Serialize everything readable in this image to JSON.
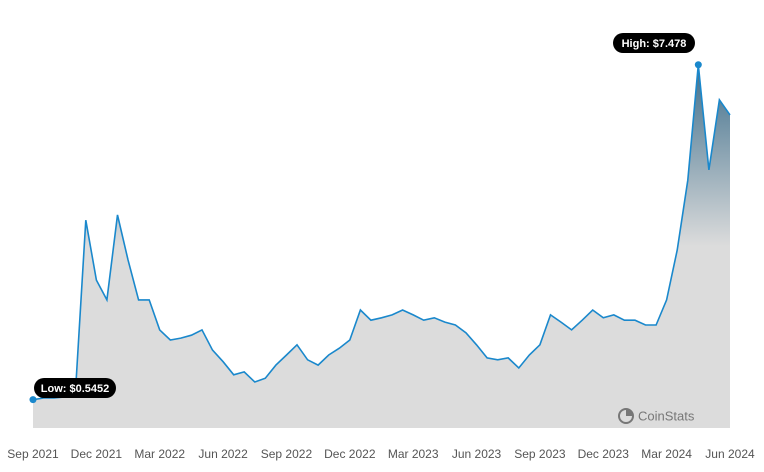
{
  "chart_data": {
    "type": "area",
    "categories": [
      "Sep 2021",
      null,
      null,
      null,
      null,
      null,
      "Dec 2021",
      null,
      null,
      null,
      null,
      null,
      "Mar 2022",
      null,
      null,
      null,
      null,
      null,
      "Jun 2022",
      null,
      null,
      null,
      null,
      null,
      "Sep 2022",
      null,
      null,
      null,
      null,
      null,
      "Dec 2022",
      null,
      null,
      null,
      null,
      null,
      "Mar 2023",
      null,
      null,
      null,
      null,
      null,
      "Jun 2023",
      null,
      null,
      null,
      null,
      null,
      "Sep 2023",
      null,
      null,
      null,
      null,
      null,
      "Dec 2023",
      null,
      null,
      null,
      null,
      null,
      "Mar 2024",
      null,
      null,
      null,
      null,
      null,
      "Jun 2024"
    ],
    "values": [
      0.5452,
      0.58,
      0.58,
      0.6,
      0.62,
      4.26,
      3.02,
      2.61,
      4.37,
      3.44,
      2.61,
      2.61,
      1.99,
      1.78,
      1.82,
      1.88,
      1.99,
      1.57,
      1.33,
      1.06,
      1.12,
      0.91,
      0.99,
      1.26,
      1.47,
      1.68,
      1.37,
      1.26,
      1.47,
      1.61,
      1.78,
      2.4,
      2.19,
      2.24,
      2.3,
      2.4,
      2.3,
      2.19,
      2.24,
      2.15,
      2.09,
      1.93,
      1.68,
      1.41,
      1.37,
      1.41,
      1.2,
      1.47,
      1.68,
      2.3,
      2.15,
      1.99,
      2.19,
      2.4,
      2.24,
      2.3,
      2.19,
      2.19,
      2.09,
      2.09,
      2.61,
      3.64,
      5.09,
      7.478,
      5.3,
      6.75,
      6.44
    ],
    "ylim": [
      0,
      8.3
    ],
    "color": "#1a88cc",
    "fill_top": "#3f6f8c",
    "fill_bottom": "#dcdcdc",
    "low": {
      "label": "Low: $0.5452",
      "value": 0.5452
    },
    "high": {
      "label": "High: $7.478",
      "value": 7.478
    },
    "watermark": "CoinStats"
  }
}
